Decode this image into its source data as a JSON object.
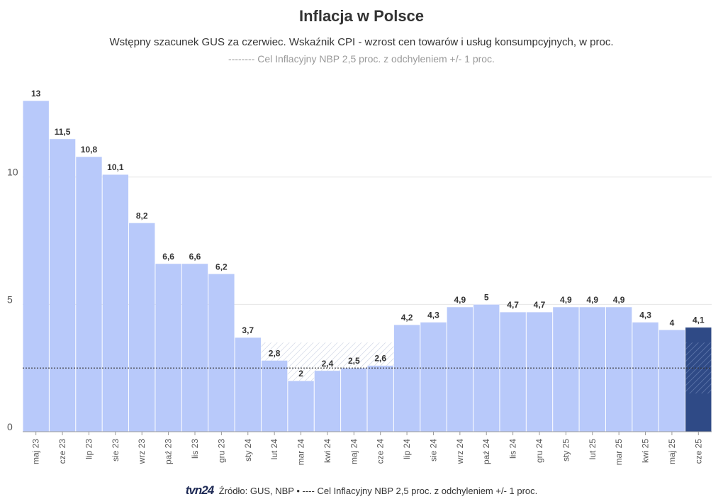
{
  "header": {
    "title": "Inflacja w Polsce",
    "subtitle": "Wstępny szacunek GUS za czerwiec. Wskaźnik CPI - wzrost cen towarów i usług konsumpcyjnych, w proc.",
    "target_note": "-------- Cel Inflacyjny NBP 2,5 proc. z odchyleniem +/- 1 proc."
  },
  "footer": {
    "logo": "tvn24",
    "source": "Źródło: GUS, NBP • ---- Cel Inflacyjny NBP 2,5 proc. z odchyleniem +/- 1 proc."
  },
  "chart_data": {
    "type": "bar",
    "categories": [
      "maj 23",
      "cze 23",
      "lip 23",
      "sie 23",
      "wrz 23",
      "paź 23",
      "lis 23",
      "gru 23",
      "sty 24",
      "lut 24",
      "mar 24",
      "kwi 24",
      "maj 24",
      "cze 24",
      "lip 24",
      "sie 24",
      "wrz 24",
      "paź 24",
      "lis 24",
      "gru 24",
      "sty 25",
      "lut 25",
      "mar 25",
      "kwi 25",
      "maj 25",
      "cze 25"
    ],
    "values": [
      13,
      11.5,
      10.8,
      10.1,
      8.2,
      6.6,
      6.6,
      6.2,
      3.7,
      2.8,
      2,
      2.4,
      2.5,
      2.6,
      4.2,
      4.3,
      4.9,
      5,
      4.7,
      4.7,
      4.9,
      4.9,
      4.9,
      4.3,
      4,
      4.1
    ],
    "value_labels": [
      "13",
      "11,5",
      "10,8",
      "10,1",
      "8,2",
      "6,6",
      "6,6",
      "6,2",
      "3,7",
      "2,8",
      "2",
      "2,4",
      "2,5",
      "2,6",
      "4,2",
      "4,3",
      "4,9",
      "5",
      "4,7",
      "4,7",
      "4,9",
      "4,9",
      "4,9",
      "4,3",
      "4",
      "4,1"
    ],
    "highlight_index": 25,
    "ylim": [
      0,
      13.5
    ],
    "yticks": [
      0,
      5,
      10
    ],
    "ytick_labels": [
      "0",
      "5",
      "10"
    ],
    "target": 2.5,
    "target_band": [
      1.5,
      3.5
    ],
    "grid": true,
    "colors": {
      "bar": "#b8c9fa",
      "highlight": "#2f4a86",
      "target_line": "#333333",
      "band_hatch": "#9aa8c8",
      "grid": "#e6e6e6"
    }
  }
}
